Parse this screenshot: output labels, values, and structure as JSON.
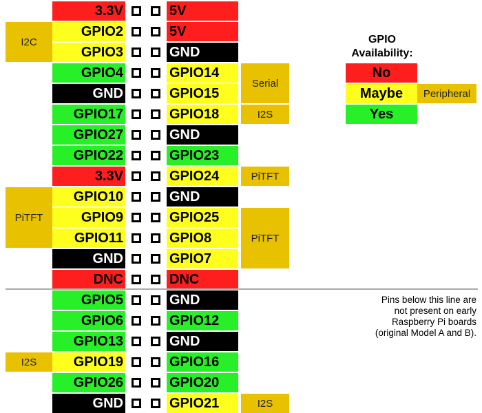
{
  "colors": {
    "no": "#ff1e1e",
    "maybe": "#ffff1e",
    "yes": "#28f028",
    "ground": "#000000",
    "peripheral": "#e8c100"
  },
  "pins": [
    {
      "left": {
        "label": "3.3V",
        "type": "no"
      },
      "right": {
        "label": "5V",
        "type": "no"
      }
    },
    {
      "left": {
        "label": "GPIO2",
        "type": "maybe"
      },
      "right": {
        "label": "5V",
        "type": "no"
      }
    },
    {
      "left": {
        "label": "GPIO3",
        "type": "maybe"
      },
      "right": {
        "label": "GND",
        "type": "ground"
      }
    },
    {
      "left": {
        "label": "GPIO4",
        "type": "yes"
      },
      "right": {
        "label": "GPIO14",
        "type": "maybe"
      }
    },
    {
      "left": {
        "label": "GND",
        "type": "ground"
      },
      "right": {
        "label": "GPIO15",
        "type": "maybe"
      }
    },
    {
      "left": {
        "label": "GPIO17",
        "type": "yes"
      },
      "right": {
        "label": "GPIO18",
        "type": "maybe"
      }
    },
    {
      "left": {
        "label": "GPIO27",
        "type": "yes"
      },
      "right": {
        "label": "GND",
        "type": "ground"
      }
    },
    {
      "left": {
        "label": "GPIO22",
        "type": "yes"
      },
      "right": {
        "label": "GPIO23",
        "type": "yes"
      }
    },
    {
      "left": {
        "label": "3.3V",
        "type": "no"
      },
      "right": {
        "label": "GPIO24",
        "type": "maybe"
      }
    },
    {
      "left": {
        "label": "GPIO10",
        "type": "maybe"
      },
      "right": {
        "label": "GND",
        "type": "ground"
      }
    },
    {
      "left": {
        "label": "GPIO9",
        "type": "maybe"
      },
      "right": {
        "label": "GPIO25",
        "type": "maybe"
      }
    },
    {
      "left": {
        "label": "GPIO11",
        "type": "maybe"
      },
      "right": {
        "label": "GPIO8",
        "type": "maybe"
      }
    },
    {
      "left": {
        "label": "GND",
        "type": "ground"
      },
      "right": {
        "label": "GPIO7",
        "type": "maybe"
      }
    },
    {
      "left": {
        "label": "DNC",
        "type": "no"
      },
      "right": {
        "label": "DNC",
        "type": "no"
      }
    },
    {
      "left": {
        "label": "GPIO5",
        "type": "yes"
      },
      "right": {
        "label": "GND",
        "type": "ground"
      }
    },
    {
      "left": {
        "label": "GPIO6",
        "type": "yes"
      },
      "right": {
        "label": "GPIO12",
        "type": "yes"
      }
    },
    {
      "left": {
        "label": "GPIO13",
        "type": "yes"
      },
      "right": {
        "label": "GND",
        "type": "ground"
      }
    },
    {
      "left": {
        "label": "GPIO19",
        "type": "maybe"
      },
      "right": {
        "label": "GPIO16",
        "type": "yes"
      }
    },
    {
      "left": {
        "label": "GPIO26",
        "type": "yes"
      },
      "right": {
        "label": "GPIO20",
        "type": "yes"
      }
    },
    {
      "left": {
        "label": "GND",
        "type": "ground"
      },
      "right": {
        "label": "GPIO21",
        "type": "maybe"
      }
    }
  ],
  "peripherals": [
    {
      "label": "I2C",
      "side": "left",
      "start": 1,
      "span": 2
    },
    {
      "label": "PiTFT",
      "side": "left",
      "start": 9,
      "span": 3
    },
    {
      "label": "I2S",
      "side": "left",
      "start": 17,
      "span": 1
    },
    {
      "label": "Serial",
      "side": "right",
      "start": 3,
      "span": 2
    },
    {
      "label": "I2S",
      "side": "right",
      "start": 5,
      "span": 1
    },
    {
      "label": "PiTFT",
      "side": "right",
      "start": 8,
      "span": 1
    },
    {
      "label": "PiTFT",
      "side": "right",
      "start": 10,
      "span": 3
    },
    {
      "label": "I2S",
      "side": "right",
      "start": 19,
      "span": 1
    }
  ],
  "legend": {
    "title_line1": "GPIO",
    "title_line2": "Availability:",
    "items": [
      {
        "label": "No",
        "type": "no"
      },
      {
        "label": "Maybe",
        "type": "maybe"
      },
      {
        "label": "Yes",
        "type": "yes"
      }
    ],
    "peripheral_label": "Peripheral"
  },
  "note": {
    "lines": [
      "Pins below this line are",
      "not present on early",
      "Raspberry Pi boards",
      "(original Model A and B)."
    ]
  }
}
